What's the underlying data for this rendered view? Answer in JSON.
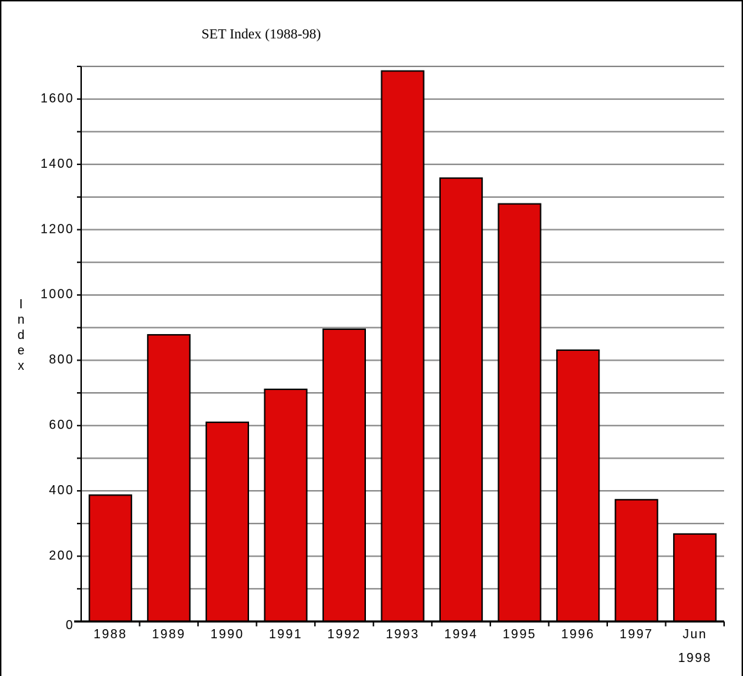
{
  "chart_data": {
    "type": "bar",
    "title": "SET Index (1988-98)",
    "y_label": "Index",
    "categories": [
      "1988",
      "1989",
      "1990",
      "1991",
      "1992",
      "1993",
      "1994",
      "1995",
      "1996",
      "1997",
      "Jun 1998"
    ],
    "values": [
      387,
      878,
      610,
      711,
      895,
      1686,
      1358,
      1279,
      831,
      373,
      268
    ],
    "color": "#dd0808",
    "ylim": [
      0,
      1700
    ],
    "yticks": [
      0,
      200,
      400,
      600,
      800,
      1000,
      1200,
      1400,
      1600
    ],
    "minor_yticks": [
      100,
      300,
      500,
      700,
      900,
      1100,
      1300,
      1500,
      1700
    ],
    "grid": true
  }
}
